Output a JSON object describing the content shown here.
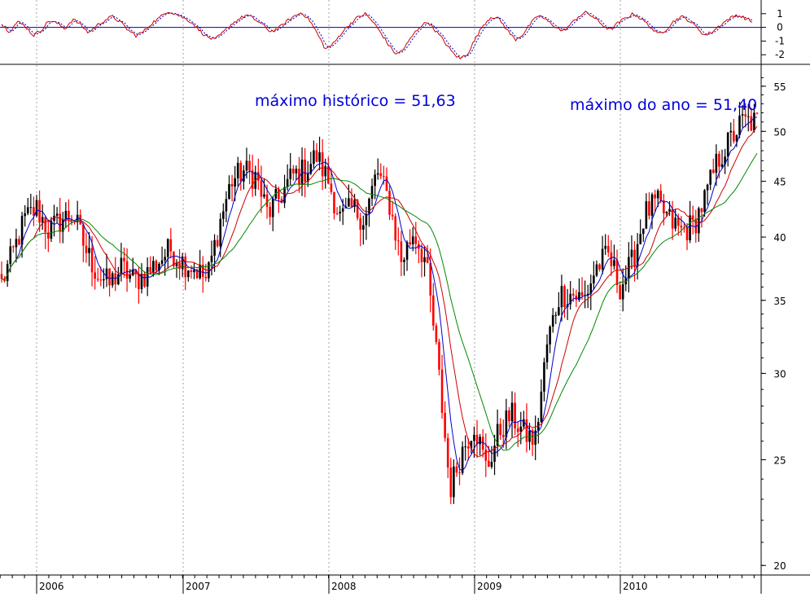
{
  "chart_data": [
    {
      "type": "line",
      "panel": "oscillator",
      "yticks": [
        1,
        0,
        -1,
        -2
      ],
      "ylim": [
        -2.7,
        1.7
      ],
      "colors": {
        "fast": "#cc0000",
        "slow": "#0000cc",
        "zero": "#0000aa"
      },
      "series_shape": [
        0.2,
        -0.3,
        0.4,
        0.1,
        -0.6,
        -0.2,
        0.5,
        0.3,
        -0.1,
        0.6,
        0.2,
        -0.4,
        0.1,
        0.5,
        0.8,
        0.4,
        -0.2,
        -0.6,
        -0.3,
        0.3,
        0.7,
        1.2,
        1.0,
        0.7,
        0.4,
        -0.2,
        -0.7,
        -0.9,
        -0.4,
        0.2,
        0.6,
        0.9,
        0.6,
        0.2,
        -0.3,
        -0.1,
        0.4,
        0.8,
        1.1,
        0.5,
        -0.5,
        -1.6,
        -1.2,
        -0.4,
        0.2,
        0.7,
        1.0,
        0.4,
        -0.4,
        -1.3,
        -2.0,
        -1.5,
        -0.6,
        0.1,
        0.4,
        -0.3,
        -1.0,
        -1.8,
        -2.3,
        -1.9,
        -0.8,
        0.2,
        0.8,
        0.6,
        -0.2,
        -0.9,
        -0.5,
        0.3,
        0.9,
        0.5,
        0.1,
        -0.3,
        0.2,
        0.8,
        1.1,
        0.7,
        0.2,
        -0.2,
        0.3,
        0.7,
        1.0,
        0.6,
        0.1,
        -0.5,
        -0.2,
        0.4,
        0.8,
        0.5,
        0.0,
        -0.6,
        -0.3,
        0.2,
        0.6,
        0.9,
        0.7,
        0.4
      ]
    },
    {
      "type": "candlestick",
      "panel": "price",
      "scale": "log",
      "yticks": [
        55,
        50,
        45,
        40,
        35,
        30,
        25,
        20
      ],
      "ylim": [
        19.6,
        57.5
      ],
      "x_axis": {
        "labels": [
          "2006",
          "2007",
          "2008",
          "2009",
          "2010"
        ]
      },
      "grid": "vertical-dashed",
      "colors": {
        "up": "#000000",
        "down": "#ff0000",
        "ma_short": "#0000cc",
        "ma_mid": "#cc0000",
        "ma_long": "#008800"
      },
      "annotations": [
        {
          "text": "máximo histórico = 51,63",
          "value": 51.63,
          "date": "2008-01"
        },
        {
          "text": "máximo do ano = 51,40",
          "value": 51.4,
          "date": "2010-10"
        }
      ],
      "close_path": [
        [
          "2005-09",
          37.0
        ],
        [
          "2005-10",
          36.0
        ],
        [
          "2005-11",
          38.5
        ],
        [
          "2005-12",
          41.5
        ],
        [
          "2006-01",
          42.5
        ],
        [
          "2006-02",
          40.5
        ],
        [
          "2006-03",
          41.5
        ],
        [
          "2006-04",
          42.0
        ],
        [
          "2006-05",
          39.0
        ],
        [
          "2006-06",
          37.0
        ],
        [
          "2006-07",
          36.2
        ],
        [
          "2006-08",
          37.5
        ],
        [
          "2006-09",
          36.5
        ],
        [
          "2006-10",
          37.0
        ],
        [
          "2006-11",
          38.0
        ],
        [
          "2006-12",
          39.0
        ],
        [
          "2007-01",
          38.0
        ],
        [
          "2007-02",
          37.5
        ],
        [
          "2007-03",
          36.5
        ],
        [
          "2007-04",
          41.0
        ],
        [
          "2007-05",
          45.0
        ],
        [
          "2007-06",
          46.0
        ],
        [
          "2007-07",
          45.5
        ],
        [
          "2007-08",
          42.0
        ],
        [
          "2007-09",
          43.5
        ],
        [
          "2007-10",
          45.5
        ],
        [
          "2007-11",
          46.0
        ],
        [
          "2007-12",
          47.5
        ],
        [
          "2008-01",
          45.0
        ],
        [
          "2008-02",
          41.5
        ],
        [
          "2008-03",
          42.5
        ],
        [
          "2008-04",
          41.5
        ],
        [
          "2008-05",
          46.0
        ],
        [
          "2008-06",
          43.0
        ],
        [
          "2008-07",
          38.0
        ],
        [
          "2008-08",
          40.5
        ],
        [
          "2008-09",
          38.0
        ],
        [
          "2008-10",
          30.5
        ],
        [
          "2008-11",
          23.5
        ],
        [
          "2008-12",
          25.5
        ],
        [
          "2009-01",
          27.0
        ],
        [
          "2009-02",
          24.5
        ],
        [
          "2009-03",
          26.5
        ],
        [
          "2009-04",
          27.5
        ],
        [
          "2009-05",
          26.5
        ],
        [
          "2009-06",
          26.0
        ],
        [
          "2009-07",
          32.0
        ],
        [
          "2009-08",
          35.5
        ],
        [
          "2009-09",
          35.5
        ],
        [
          "2009-10",
          35.0
        ],
        [
          "2009-11",
          37.5
        ],
        [
          "2009-12",
          38.5
        ],
        [
          "2010-01",
          36.0
        ],
        [
          "2010-02",
          38.0
        ],
        [
          "2010-03",
          42.0
        ],
        [
          "2010-04",
          43.0
        ],
        [
          "2010-05",
          41.5
        ],
        [
          "2010-06",
          40.5
        ],
        [
          "2010-07",
          41.0
        ],
        [
          "2010-08",
          43.5
        ],
        [
          "2010-09",
          47.0
        ],
        [
          "2010-10",
          49.0
        ],
        [
          "2010-11",
          51.0
        ]
      ]
    }
  ]
}
